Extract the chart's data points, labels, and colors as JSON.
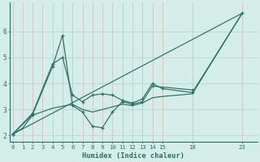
{
  "bg_color": "#d5ede8",
  "line_color": "#2a7068",
  "grid_color": "#b8d8d2",
  "spine_color": "#2a7068",
  "xlabel": "Humidex (Indice chaleur)",
  "xticks": [
    0,
    1,
    2,
    3,
    4,
    5,
    6,
    7,
    8,
    9,
    10,
    11,
    12,
    13,
    14,
    15,
    18,
    23
  ],
  "yticks": [
    2,
    3,
    4,
    5,
    6
  ],
  "ylim": [
    1.75,
    7.1
  ],
  "xlim": [
    -0.3,
    24.5
  ],
  "lines": [
    {
      "x": [
        0,
        2,
        4,
        5,
        6,
        7,
        8,
        9,
        10,
        11,
        12,
        13,
        14,
        18
      ],
      "y": [
        2.05,
        2.8,
        4.65,
        5.85,
        3.15,
        2.9,
        2.35,
        2.3,
        2.9,
        3.3,
        3.2,
        3.3,
        3.9,
        3.75
      ],
      "marker": true
    },
    {
      "x": [
        0,
        2,
        4,
        5,
        6,
        7,
        8,
        9,
        10,
        11,
        12,
        13,
        14,
        15,
        18,
        23
      ],
      "y": [
        2.05,
        2.85,
        4.75,
        5.0,
        3.55,
        3.3,
        3.55,
        3.6,
        3.55,
        3.35,
        3.25,
        3.4,
        4.0,
        3.8,
        3.65,
        6.7
      ],
      "marker": true
    },
    {
      "x": [
        0,
        23
      ],
      "y": [
        2.05,
        6.7
      ],
      "marker": false
    },
    {
      "x": [
        0,
        1,
        2,
        4,
        6,
        7,
        8,
        9,
        10,
        11,
        12,
        13,
        14,
        15,
        18,
        23
      ],
      "y": [
        2.05,
        2.28,
        2.78,
        3.05,
        3.2,
        3.0,
        2.9,
        3.0,
        3.1,
        3.2,
        3.15,
        3.25,
        3.45,
        3.5,
        3.6,
        6.7
      ],
      "marker": false
    }
  ]
}
